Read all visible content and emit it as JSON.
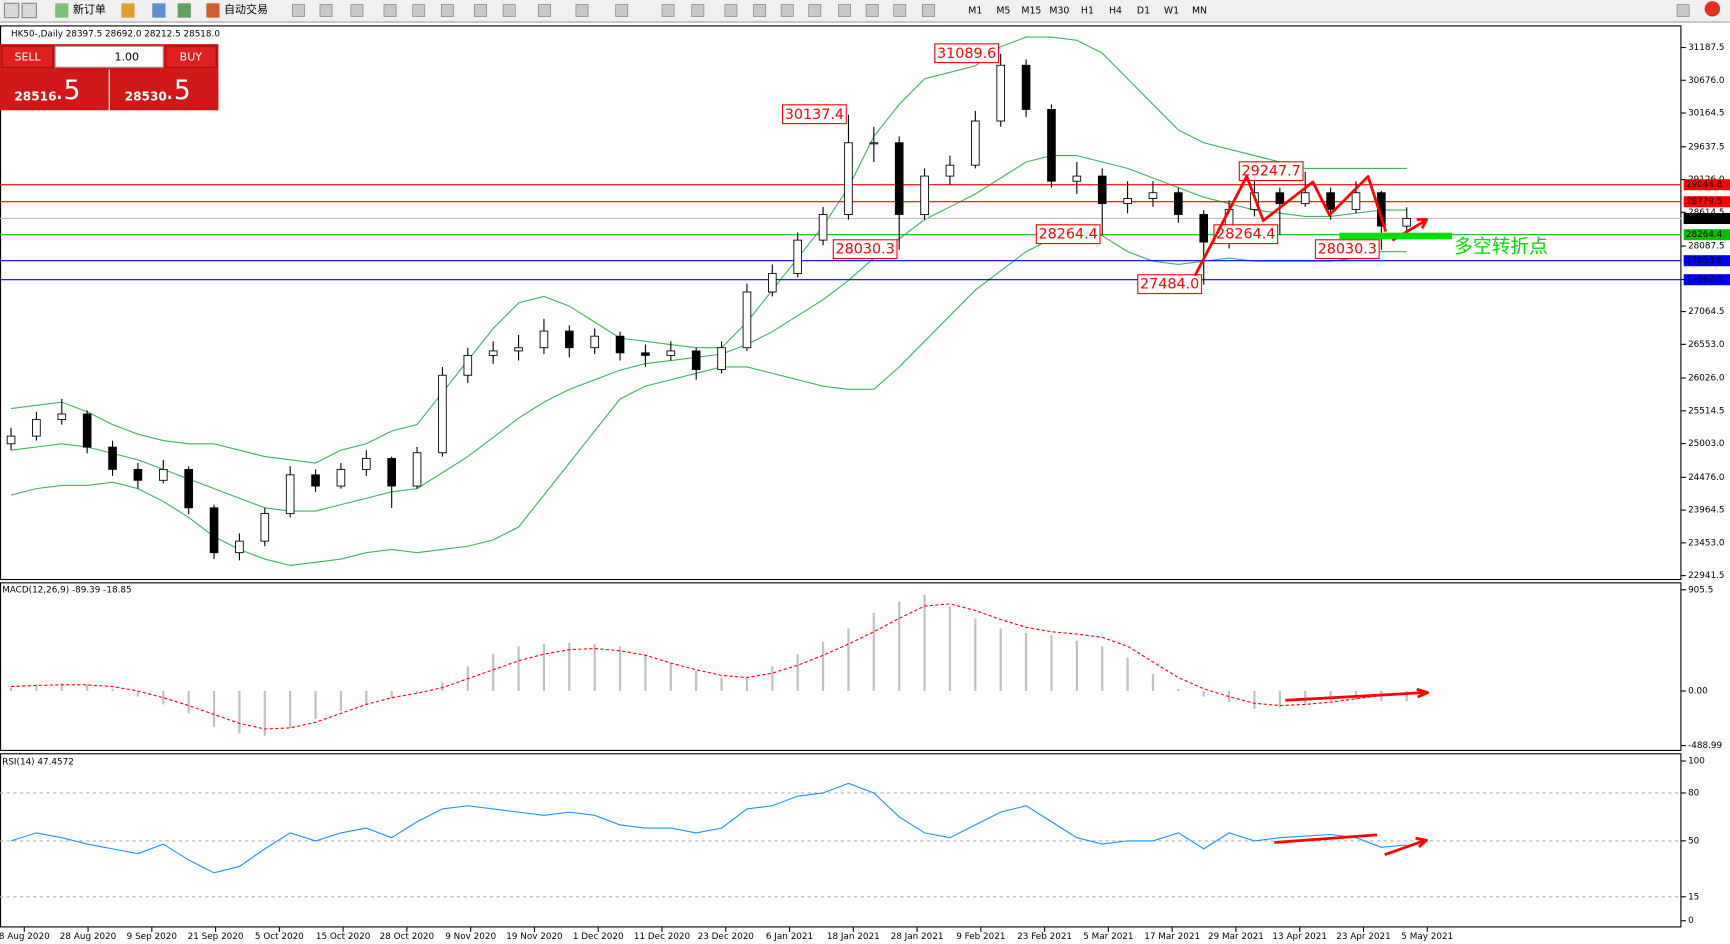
{
  "toolbar": {
    "buttons": [
      "新订单",
      "自动交易"
    ],
    "timeframes": [
      "M1",
      "M5",
      "M15",
      "M30",
      "H1",
      "H4",
      "D1",
      "W1",
      "MN"
    ]
  },
  "trade_panel": {
    "sell": "SELL",
    "lot": "1.00",
    "buy": "BUY",
    "bid_main": "28516",
    "bid_big": ".5",
    "ask_main": "28530",
    "ask_big": ".5"
  },
  "chart_data": [
    {
      "type": "candlestick",
      "title": "HK50-,Daily  28397.5 28692.0 28212.5 28518.0",
      "ohlc": [
        [
          25000,
          25250,
          24900,
          25120
        ],
        [
          25120,
          25500,
          25050,
          25380
        ],
        [
          25380,
          25700,
          25300,
          25465
        ],
        [
          25465,
          25520,
          24850,
          24948
        ],
        [
          24948,
          25050,
          24500,
          24600
        ],
        [
          24600,
          24700,
          24300,
          24430
        ],
        [
          24430,
          24750,
          24380,
          24600
        ],
        [
          24600,
          24650,
          23900,
          24000
        ],
        [
          24000,
          24050,
          23200,
          23300
        ],
        [
          23300,
          23600,
          23180,
          23480
        ],
        [
          23480,
          24000,
          23400,
          23910
        ],
        [
          23910,
          24650,
          23850,
          24515
        ],
        [
          24515,
          24600,
          24250,
          24340
        ],
        [
          24340,
          24700,
          24300,
          24600
        ],
        [
          24600,
          24900,
          24500,
          24770
        ],
        [
          24770,
          24800,
          24000,
          24340
        ],
        [
          24340,
          24950,
          24300,
          24860
        ],
        [
          24860,
          26200,
          24800,
          26070
        ],
        [
          26070,
          26500,
          25950,
          26380
        ],
        [
          26380,
          26600,
          26250,
          26450
        ],
        [
          26450,
          26700,
          26300,
          26500
        ],
        [
          26500,
          26950,
          26400,
          26760
        ],
        [
          26760,
          26850,
          26350,
          26500
        ],
        [
          26500,
          26800,
          26400,
          26680
        ],
        [
          26680,
          26750,
          26300,
          26420
        ],
        [
          26420,
          26550,
          26200,
          26380
        ],
        [
          26380,
          26600,
          26300,
          26450
        ],
        [
          26450,
          26500,
          26000,
          26160
        ],
        [
          26160,
          26600,
          26100,
          26500
        ],
        [
          26500,
          27500,
          26450,
          27370
        ],
        [
          27370,
          27800,
          27300,
          27660
        ],
        [
          27660,
          28300,
          27600,
          28180
        ],
        [
          28180,
          28700,
          28100,
          28580
        ],
        [
          28580,
          30137.4,
          28500,
          29700
        ],
        [
          29700,
          29950,
          29400,
          29700
        ],
        [
          29700,
          29800,
          28030.3,
          28580
        ],
        [
          28580,
          29300,
          28500,
          29180
        ],
        [
          29180,
          29500,
          29050,
          29350
        ],
        [
          29350,
          30200,
          29300,
          30040
        ],
        [
          30040,
          31089.6,
          29950,
          30910
        ],
        [
          30910,
          31000,
          30100,
          30220
        ],
        [
          30220,
          30300,
          29000,
          29100
        ],
        [
          29100,
          29400,
          28900,
          29180
        ],
        [
          29180,
          29300,
          28264.4,
          28750
        ],
        [
          28750,
          29100,
          28600,
          28830
        ],
        [
          28830,
          29100,
          28700,
          28920
        ],
        [
          28920,
          29000,
          28450,
          28580
        ],
        [
          28580,
          28650,
          27484.0,
          28150
        ],
        [
          28150,
          28800,
          28050,
          28660
        ],
        [
          28660,
          29100,
          28550,
          28920
        ],
        [
          28920,
          29000,
          28264.4,
          28750
        ],
        [
          28750,
          29247.7,
          28700,
          28920
        ],
        [
          28920,
          29000,
          28500,
          28660
        ],
        [
          28660,
          29100,
          28600,
          28920
        ],
        [
          28920,
          28950,
          28030.3,
          28400
        ],
        [
          28397.5,
          28692.0,
          28212.5,
          28518.0
        ]
      ],
      "bull_color": "#ffffff",
      "bear_color": "#000000",
      "series": [
        {
          "color": "#3cb35a",
          "values": [
            25550,
            25600,
            25650,
            25500,
            25300,
            25150,
            25050,
            25000,
            25000,
            24900,
            24800,
            24750,
            24700,
            24900,
            25000,
            25200,
            25300,
            25800,
            26300,
            26800,
            27200,
            27300,
            27150,
            26900,
            26650,
            26600,
            26550,
            26500,
            26500,
            26900,
            27400,
            27900,
            28400,
            29000,
            29800,
            30300,
            30700,
            30800,
            30900,
            31200,
            31350,
            31350,
            31300,
            31100,
            30700,
            30300,
            29900,
            29700,
            29600,
            29500,
            29400,
            29300,
            29300,
            29300,
            29300,
            29300
          ]
        },
        {
          "color": "#3cb35a",
          "values": [
            24900,
            24950,
            25000,
            24950,
            24850,
            24750,
            24600,
            24450,
            24300,
            24150,
            24000,
            23950,
            23950,
            24050,
            24150,
            24250,
            24300,
            24550,
            24800,
            25100,
            25400,
            25650,
            25850,
            26000,
            26150,
            26250,
            26300,
            26350,
            26400,
            26550,
            26750,
            27000,
            27250,
            27550,
            27900,
            28200,
            28500,
            28700,
            28900,
            29150,
            29400,
            29500,
            29500,
            29400,
            29300,
            29150,
            29000,
            28850,
            28750,
            28650,
            28600,
            28550,
            28550,
            28600,
            28650,
            28650
          ]
        },
        {
          "color": "#3cb35a",
          "values": [
            24200,
            24300,
            24350,
            24350,
            24400,
            24300,
            24100,
            23850,
            23550,
            23350,
            23200,
            23100,
            23150,
            23200,
            23300,
            23350,
            23300,
            23350,
            23400,
            23500,
            23700,
            24200,
            24700,
            25200,
            25700,
            25900,
            26000,
            26100,
            26200,
            26200,
            26100,
            26000,
            25900,
            25850,
            25850,
            26200,
            26600,
            27000,
            27400,
            27700,
            28000,
            28200,
            28300,
            28250,
            28000,
            27850,
            27800,
            27850,
            27900,
            27850,
            27850,
            27850,
            27850,
            27900,
            28000,
            28000
          ]
        }
      ],
      "ylim": [
        22872,
        31516
      ],
      "yticks": [
        31187.5,
        {
          "value": 30676,
          "label": "30676.0"
        },
        30164.5,
        29637.5,
        {
          "value": 29126,
          "label": "29126.0"
        },
        28614.5,
        28087.5,
        {
          "value": 27564,
          "label": "27564.0"
        },
        27064.5,
        {
          "value": 26553,
          "label": "26553.0"
        },
        {
          "value": 26026,
          "label": "26026.0"
        },
        25514.5,
        {
          "value": 25003,
          "label": "25003.0"
        },
        {
          "value": 24476,
          "label": "24476.0"
        },
        23964.5,
        {
          "value": 23453,
          "label": "23453.0"
        },
        22941.5
      ],
      "levels": [
        {
          "value": 29044.8,
          "color": "#ff0000"
        },
        {
          "value": 28779.5,
          "color": "#ff0000"
        },
        {
          "value": 28518,
          "label": "28518.0",
          "color": "#c0c0c0"
        },
        {
          "value": 28264.4,
          "color": "#00c000"
        },
        {
          "value": 27858.6,
          "color": "#0000ff"
        },
        {
          "value": 27562,
          "label": "27562.0",
          "color": "#0000ff"
        }
      ],
      "annotations": [
        {
          "x": 39,
          "value": 31089.6
        },
        {
          "x": 33,
          "value": 30137.4
        },
        {
          "x": 35,
          "value": 28030.3
        },
        {
          "x": 43,
          "value": 28264.4
        },
        {
          "x": 47,
          "value": 27484,
          "label": "27484.0"
        },
        {
          "x": 50,
          "value": 28264.4
        },
        {
          "x": 51,
          "value": 29247.7
        },
        {
          "x": 54,
          "value": 28030.3
        }
      ],
      "note": "多空转折点"
    },
    {
      "type": "macd",
      "title": "MACD(12,26,9) -89.39 -18.85",
      "series": [
        {
          "color": "#c0c0c0",
          "values": [
            30,
            60,
            70,
            60,
            20,
            -50,
            -120,
            -200,
            -320,
            -380,
            -400,
            -330,
            -250,
            -180,
            -120,
            -60,
            -20,
            80,
            220,
            330,
            400,
            420,
            430,
            420,
            400,
            330,
            250,
            180,
            120,
            130,
            220,
            330,
            440,
            560,
            700,
            800,
            860,
            760,
            650,
            560,
            520,
            500,
            450,
            400,
            300,
            150,
            20,
            -50,
            -100,
            -160,
            -150,
            -120,
            -90,
            -80,
            -90,
            -89.39
          ]
        },
        {
          "color": "#ff0000",
          "values": [
            40,
            50,
            55,
            55,
            40,
            0,
            -60,
            -130,
            -210,
            -290,
            -340,
            -330,
            -280,
            -200,
            -120,
            -60,
            -20,
            30,
            110,
            190,
            270,
            330,
            370,
            380,
            360,
            320,
            250,
            190,
            140,
            120,
            160,
            230,
            320,
            420,
            530,
            650,
            760,
            780,
            720,
            640,
            570,
            530,
            510,
            480,
            400,
            260,
            120,
            20,
            -50,
            -110,
            -130,
            -120,
            -100,
            -70,
            -40,
            -18.85
          ]
        }
      ],
      "ylim": [
        -537,
        963
      ],
      "yticks": [
        905.5,
        {
          "value": 0,
          "label": "0.00"
        },
        -488.99
      ]
    },
    {
      "type": "rsi",
      "title": "RSI(14) 47.4572",
      "color": "#1e90ff",
      "values": [
        50,
        55,
        52,
        48,
        45,
        42,
        48,
        38,
        30,
        34,
        45,
        55,
        50,
        55,
        58,
        52,
        62,
        70,
        72,
        70,
        68,
        66,
        68,
        66,
        60,
        58,
        58,
        55,
        58,
        70,
        72,
        78,
        80,
        86,
        80,
        65,
        55,
        52,
        60,
        68,
        72,
        62,
        52,
        48,
        50,
        50,
        55,
        45,
        55,
        50,
        52,
        53,
        54,
        52,
        46,
        47.4572
      ],
      "ylim": [
        -4.2,
        104.2
      ],
      "yticks": [
        100,
        80,
        50,
        15,
        0
      ],
      "date_labels": [
        "8 Aug 2020",
        "28 Aug 2020",
        "9 Sep 2020",
        "21 Sep 2020",
        "5 Oct 2020",
        "15 Oct 2020",
        "28 Oct 2020",
        "9 Nov 2020",
        "19 Nov 2020",
        "1 Dec 2020",
        "11 Dec 2020",
        "23 Dec 2020",
        "6 Jan 2021",
        "18 Jan 2021",
        "28 Jan 2021",
        "9 Feb 2021",
        "23 Feb 2021",
        "5 Mar 2021",
        "17 Mar 2021",
        "29 Mar 2021",
        "13 Apr 2021",
        "23 Apr 2021",
        "5 May 2021"
      ]
    }
  ]
}
